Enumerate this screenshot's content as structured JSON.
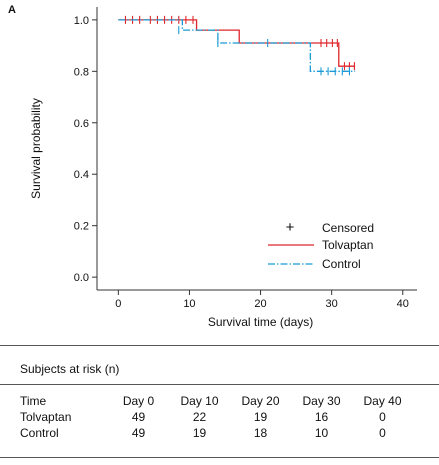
{
  "panel_label": "A",
  "chart_data": {
    "type": "line",
    "subtype": "kaplan-meier",
    "title": "",
    "xlabel": "Survival time (days)",
    "ylabel": "Survival probability",
    "xlim": [
      -3,
      42
    ],
    "ylim": [
      -0.05,
      1.05
    ],
    "xticks": [
      0,
      10,
      20,
      30,
      40
    ],
    "yticks": [
      0.0,
      0.2,
      0.4,
      0.6,
      0.8,
      1.0
    ],
    "ytick_labels": [
      "0.0",
      "0.2",
      "0.4",
      "0.6",
      "0.8",
      "1.0"
    ],
    "grid": false,
    "legend_position": "bottom-right",
    "legend": {
      "censored_label": "Censored",
      "censored_marker": "+"
    },
    "series": [
      {
        "name": "Tolvaptan",
        "color": "#e0262b",
        "dash": "solid",
        "steps": [
          [
            0,
            1.0
          ],
          [
            11,
            0.96
          ],
          [
            17,
            0.91
          ],
          [
            31,
            0.82
          ],
          [
            33.3,
            0.82
          ]
        ],
        "censored": [
          [
            1,
            1.0
          ],
          [
            2,
            1.0
          ],
          [
            3,
            1.0
          ],
          [
            4.5,
            1.0
          ],
          [
            5.5,
            1.0
          ],
          [
            6.5,
            1.0
          ],
          [
            7.5,
            1.0
          ],
          [
            8.5,
            1.0
          ],
          [
            9.5,
            1.0
          ],
          [
            10.5,
            1.0
          ],
          [
            28.5,
            0.91
          ],
          [
            29.3,
            0.91
          ],
          [
            30.1,
            0.91
          ],
          [
            30.8,
            0.91
          ],
          [
            31.8,
            0.82
          ],
          [
            32.5,
            0.82
          ],
          [
            33.2,
            0.82
          ]
        ]
      },
      {
        "name": "Control",
        "color": "#1a9bd7",
        "dash": "dashdot",
        "steps": [
          [
            0,
            1.0
          ],
          [
            9,
            0.96
          ],
          [
            11,
            0.96
          ],
          [
            14,
            0.91
          ],
          [
            27,
            0.8
          ],
          [
            33.3,
            0.8
          ]
        ],
        "censored": [
          [
            8.5,
            0.96
          ],
          [
            14,
            0.91
          ],
          [
            21,
            0.91
          ],
          [
            28.5,
            0.8
          ],
          [
            29.5,
            0.8
          ],
          [
            30.5,
            0.8
          ],
          [
            31.5,
            0.8
          ],
          [
            32.5,
            0.8
          ]
        ]
      }
    ]
  },
  "risk_table": {
    "title": "Subjects at risk (n)",
    "header": [
      "Time",
      "Day 0",
      "Day 10",
      "Day 20",
      "Day 30",
      "Day 40"
    ],
    "rows": [
      {
        "label": "Tolvaptan",
        "values": [
          "49",
          "22",
          "19",
          "16",
          "0"
        ]
      },
      {
        "label": "Control",
        "values": [
          "49",
          "19",
          "18",
          "10",
          "0"
        ]
      }
    ]
  }
}
